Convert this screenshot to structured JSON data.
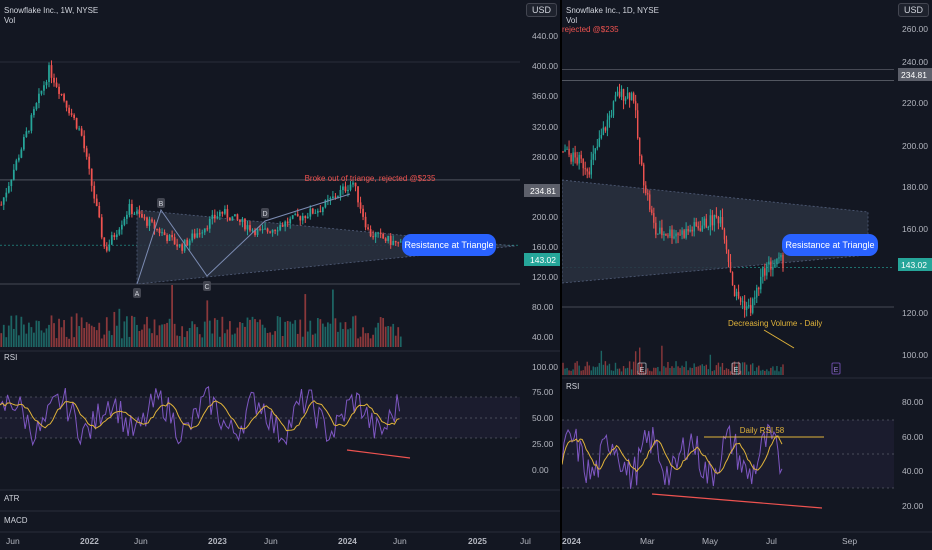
{
  "left": {
    "symbol": "Snowflake Inc., 1W, NYSE",
    "vol_label": "Vol",
    "currency_button": "USD",
    "price_ticks": [
      "440.00",
      "400.00",
      "360.00",
      "320.00",
      "280.00",
      "234.81",
      "200.00",
      "160.00",
      "143.02",
      "120.00",
      "80.00",
      "40.00"
    ],
    "rsi_ticks": [
      "100.00",
      "75.00",
      "50.00",
      "25.00",
      "0.00"
    ],
    "time_labels": [
      "Jun",
      "2022",
      "Jun",
      "2023",
      "Jun",
      "2024",
      "Jun",
      "2025",
      "Jul"
    ],
    "annotation_broke": "Broke out of triange, rejected @$235",
    "resistance_label": "Resistance at Triangle",
    "points": [
      "A",
      "B",
      "C",
      "D"
    ],
    "pane_labels": {
      "rsi": "RSI",
      "atr": "ATR",
      "macd": "MACD"
    }
  },
  "right": {
    "symbol": "Snowflake Inc., 1D, NYSE",
    "vol_label": "Vol",
    "rejected_text": "rejected @$235",
    "currency_button": "USD",
    "price_ticks": [
      "260.00",
      "240.00",
      "234.81",
      "220.00",
      "200.00",
      "180.00",
      "160.00",
      "143.02",
      "120.00",
      "100.00"
    ],
    "rsi_ticks": [
      "80.00",
      "60.00",
      "40.00",
      "20.00"
    ],
    "time_labels": [
      "2024",
      "Mar",
      "May",
      "Jul",
      "Sep"
    ],
    "resistance_label": "Resistance at Triangle",
    "decreasing_volume": "Decreasing Volume  - Daily",
    "daily_rsi": "Daily RSI 58",
    "event_markers": [
      "E",
      "E",
      "E"
    ],
    "pane_labels": {
      "rsi": "RSI"
    }
  },
  "colors": {
    "up": "#26a69a",
    "down": "#ef5350",
    "rsi_line": "#7e57c2",
    "rsi_ma": "#e0b33a",
    "triangle": "#2a3140",
    "callout": "#2962ff",
    "support_line": "#ef5350"
  },
  "chart_data": [
    {
      "type": "candlestick",
      "title": "Snowflake Inc., 1W, NYSE",
      "timeframe": "weekly",
      "x": [
        "Jun 2021",
        "2022",
        "Jun 2022",
        "2023",
        "Jun 2023",
        "2024",
        "Jun 2024"
      ],
      "close_approx": [
        230,
        330,
        130,
        150,
        170,
        210,
        143
      ],
      "ylim": [
        0,
        460
      ],
      "levels": {
        "rejection": 234.81,
        "last_price": 143.02
      },
      "triangle": {
        "A": {
          "date": "May 2022",
          "price": 115
        },
        "B": {
          "date": "Jul 2022",
          "price": 205
        },
        "C": {
          "date": "Dec 2022",
          "price": 125
        },
        "D": {
          "date": "Aug 2023",
          "price": 205
        }
      },
      "rsi": {
        "ylim": [
          0,
          100
        ],
        "bands": [
          30,
          70
        ]
      }
    },
    {
      "type": "candlestick",
      "title": "Snowflake Inc., 1D, NYSE",
      "timeframe": "daily",
      "x": [
        "2024",
        "Mar",
        "May",
        "Jul"
      ],
      "close_approx": [
        200,
        230,
        165,
        143
      ],
      "ylim": [
        90,
        265
      ],
      "levels": {
        "rejection": 234.81,
        "last_price": 143.02
      },
      "rsi": {
        "ylim": [
          15,
          85
        ],
        "bands": [
          30,
          70
        ],
        "last": 58
      }
    }
  ]
}
